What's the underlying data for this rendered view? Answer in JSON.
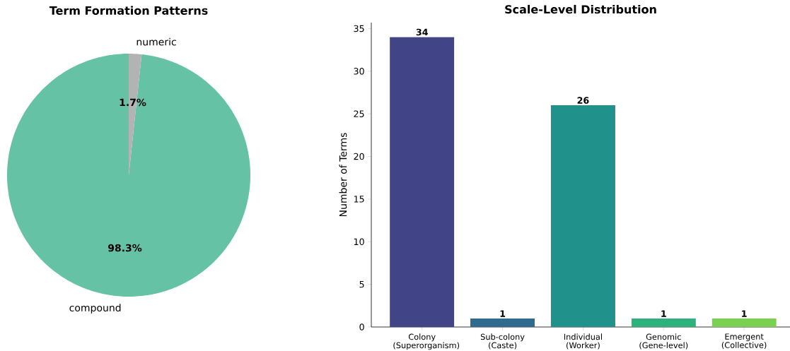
{
  "chart_data": [
    {
      "type": "pie",
      "title": "Term Formation Patterns",
      "categories": [
        "compound",
        "numeric"
      ],
      "values": [
        98.3,
        1.7
      ],
      "colors": [
        "#66c2a5",
        "#b3b3b3"
      ],
      "value_labels": [
        "98.3%",
        "1.7%"
      ]
    },
    {
      "type": "bar",
      "title": "Scale-Level Distribution",
      "ylabel": "Number of Terms",
      "categories": [
        "Colony (Superorganism)",
        "Sub-colony (Caste)",
        "Individual (Worker)",
        "Genomic (Gene-level)",
        "Emergent (Collective)"
      ],
      "values": [
        34,
        1,
        26,
        1,
        1
      ],
      "colors": [
        "#414487",
        "#2e6b8e",
        "#21918c",
        "#2db27d",
        "#7ad151"
      ],
      "ylim": [
        0,
        35.7
      ],
      "yticks": [
        0,
        5,
        10,
        15,
        20,
        25,
        30,
        35
      ],
      "data_labels": true
    }
  ]
}
